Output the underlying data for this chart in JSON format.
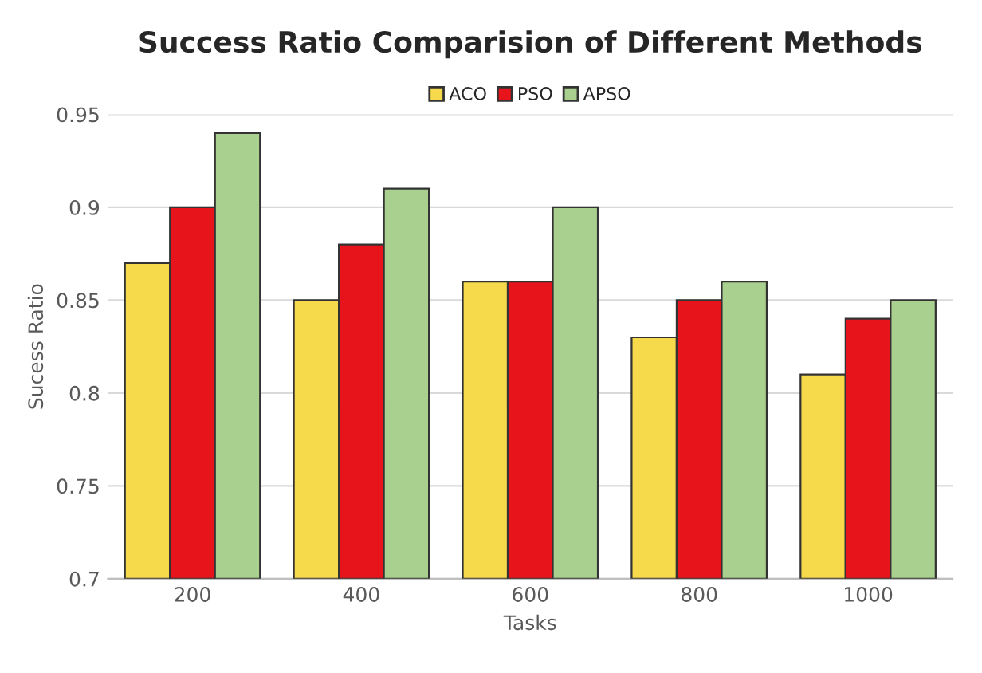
{
  "chart_data": {
    "type": "bar",
    "title": "Success Ratio Comparision of Different Methods",
    "xlabel": "Tasks",
    "ylabel": "Sucess Ratio",
    "categories": [
      "200",
      "400",
      "600",
      "800",
      "1000"
    ],
    "series": [
      {
        "name": "ACO",
        "color": "#f7d94c",
        "values": [
          0.87,
          0.85,
          0.86,
          0.83,
          0.81
        ]
      },
      {
        "name": "PSO",
        "color": "#e8141c",
        "values": [
          0.9,
          0.88,
          0.86,
          0.85,
          0.84
        ]
      },
      {
        "name": "APSO",
        "color": "#a9d08e",
        "values": [
          0.94,
          0.91,
          0.9,
          0.86,
          0.85
        ]
      }
    ],
    "ylim": [
      0.7,
      0.95
    ],
    "yticks": [
      0.7,
      0.75,
      0.8,
      0.85,
      0.9,
      0.95
    ],
    "grid": "y",
    "legend": "top"
  }
}
